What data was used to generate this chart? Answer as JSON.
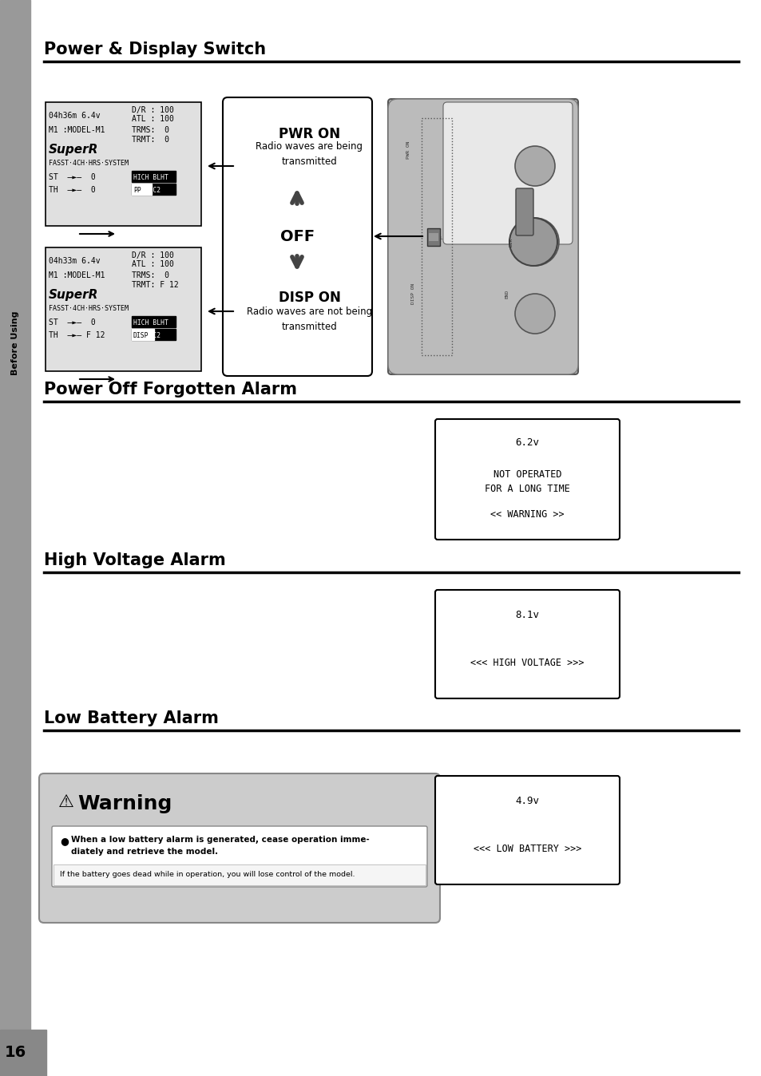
{
  "bg_color": "#ffffff",
  "sidebar_color": "#888888",
  "sidebar_label": "Before Using",
  "page_number": "16",
  "section1_title": "Power & Display Switch",
  "section2_title": "Power Off Forgotten Alarm",
  "section3_title": "High Voltage Alarm",
  "section4_title": "Low Battery Alarm",
  "pwr_on_label": "PWR ON",
  "off_label": "OFF",
  "disp_on_label": "DISP ON",
  "warning_box_title": "⚠  Warning",
  "alarm1_line1": "6.2v",
  "alarm1_line2": "NOT OPERATED\nFOR A LONG TIME",
  "alarm1_line3": "<< WARNING >>",
  "alarm2_line1": "8.1v",
  "alarm2_line2": "<<< HIGH VOLTAGE >>>",
  "alarm3_line1": "4.9v",
  "alarm3_line2": "<<< LOW BATTERY >>>"
}
